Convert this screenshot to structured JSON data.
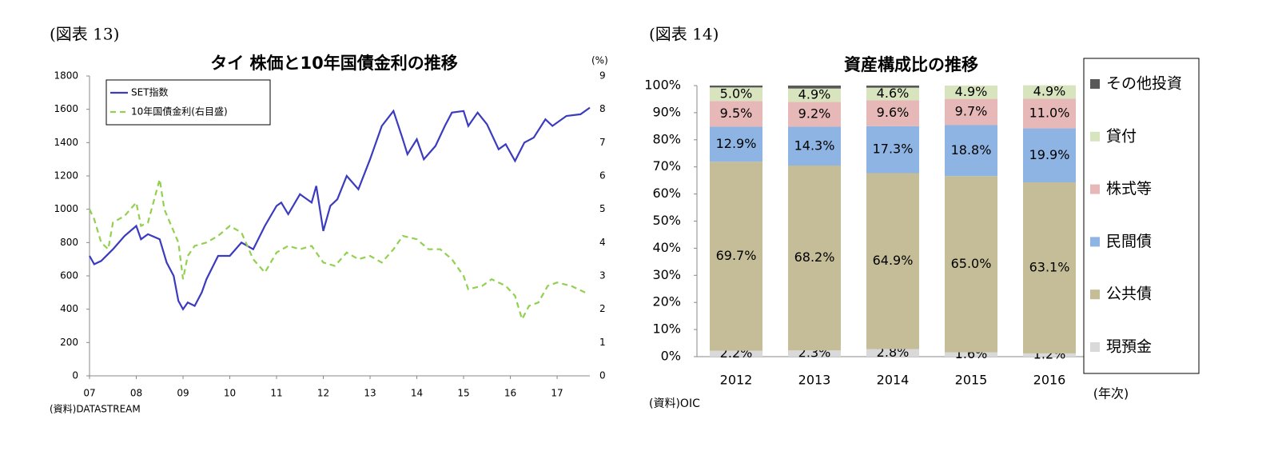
{
  "chart_data": [
    {
      "type": "line",
      "figure_label": "(図表 13)",
      "title": "タイ 株価と10年国債金利の推移",
      "y2_label": "(%)",
      "source": "(資料)DATASTREAM",
      "legend": "upper left",
      "xlim": [
        7,
        17.7
      ],
      "ylim": [
        0,
        1800
      ],
      "y2lim": [
        0,
        9
      ],
      "xticks": [
        {
          "value": 7,
          "label": "07"
        },
        {
          "value": 8,
          "label": "08"
        },
        {
          "value": 9,
          "label": "09"
        },
        10,
        11,
        12,
        13,
        14,
        15,
        16,
        17
      ],
      "yticks": [
        0,
        200,
        400,
        600,
        800,
        1000,
        1200,
        1400,
        1600,
        1800
      ],
      "y2ticks": [
        0,
        1,
        2,
        3,
        4,
        5,
        6,
        7,
        8,
        9
      ],
      "series": [
        {
          "name": "SET指数",
          "color": "#3b3bbf",
          "dash": false,
          "x": [
            7.0,
            7.1,
            7.25,
            7.5,
            7.75,
            8.0,
            8.1,
            8.25,
            8.5,
            8.65,
            8.8,
            8.9,
            9.0,
            9.1,
            9.25,
            9.4,
            9.5,
            9.75,
            10.0,
            10.25,
            10.5,
            10.75,
            11.0,
            11.1,
            11.25,
            11.5,
            11.75,
            11.85,
            12.0,
            12.15,
            12.3,
            12.5,
            12.75,
            13.0,
            13.25,
            13.5,
            13.7,
            13.8,
            14.0,
            14.15,
            14.4,
            14.6,
            14.75,
            15.0,
            15.1,
            15.3,
            15.5,
            15.75,
            15.9,
            16.1,
            16.3,
            16.5,
            16.75,
            16.9,
            17.2,
            17.5,
            17.7
          ],
          "values": [
            720,
            670,
            690,
            760,
            840,
            900,
            820,
            850,
            820,
            680,
            600,
            450,
            400,
            440,
            420,
            500,
            580,
            720,
            720,
            800,
            760,
            900,
            1020,
            1040,
            970,
            1090,
            1040,
            1140,
            870,
            1020,
            1060,
            1200,
            1120,
            1300,
            1500,
            1590,
            1420,
            1330,
            1420,
            1300,
            1380,
            1500,
            1580,
            1590,
            1500,
            1580,
            1510,
            1360,
            1390,
            1290,
            1400,
            1430,
            1540,
            1500,
            1560,
            1570,
            1610
          ]
        },
        {
          "name": "10年国債金利(右目盛)",
          "color": "#92d050",
          "dash": true,
          "axis": "y2",
          "x": [
            7.0,
            7.1,
            7.25,
            7.4,
            7.5,
            7.75,
            8.0,
            8.1,
            8.25,
            8.5,
            8.6,
            8.9,
            9.0,
            9.1,
            9.25,
            9.5,
            9.75,
            10.0,
            10.25,
            10.5,
            10.75,
            11.0,
            11.25,
            11.5,
            11.75,
            12.0,
            12.25,
            12.5,
            12.75,
            13.0,
            13.25,
            13.5,
            13.7,
            14.0,
            14.25,
            14.5,
            14.75,
            15.0,
            15.1,
            15.4,
            15.6,
            15.9,
            16.1,
            16.25,
            16.4,
            16.6,
            16.8,
            17.0,
            17.3,
            17.6
          ],
          "values": [
            5.0,
            4.7,
            4.0,
            3.8,
            4.6,
            4.8,
            5.2,
            4.5,
            4.6,
            5.9,
            5.0,
            4.0,
            2.9,
            3.6,
            3.9,
            4.0,
            4.2,
            4.5,
            4.3,
            3.5,
            3.1,
            3.7,
            3.9,
            3.8,
            3.9,
            3.4,
            3.3,
            3.7,
            3.5,
            3.6,
            3.4,
            3.8,
            4.2,
            4.1,
            3.8,
            3.8,
            3.5,
            3.0,
            2.6,
            2.7,
            2.9,
            2.7,
            2.4,
            1.7,
            2.1,
            2.2,
            2.7,
            2.8,
            2.7,
            2.5
          ]
        }
      ]
    },
    {
      "type": "bar",
      "stacked": true,
      "figure_label": "(図表 14)",
      "title": "資産構成比の推移",
      "x_label": "(年次)",
      "source": "(資料)OIC",
      "legend": "right",
      "categories": [
        "2012",
        "2013",
        "2014",
        "2015",
        "2016"
      ],
      "ylim": [
        0,
        100
      ],
      "yticks": [
        {
          "value": 0,
          "label": "0%"
        },
        {
          "value": 10,
          "label": "10%"
        },
        {
          "value": 20,
          "label": "20%"
        },
        {
          "value": 30,
          "label": "30%"
        },
        {
          "value": 40,
          "label": "40%"
        },
        {
          "value": 50,
          "label": "50%"
        },
        {
          "value": 60,
          "label": "60%"
        },
        {
          "value": 70,
          "label": "70%"
        },
        {
          "value": 80,
          "label": "80%"
        },
        {
          "value": 90,
          "label": "90%"
        },
        {
          "value": 100,
          "label": "100%"
        }
      ],
      "series": [
        {
          "name": "現預金",
          "color": "#d9d9d9",
          "values": [
            2.2,
            2.3,
            2.8,
            1.6,
            1.2
          ],
          "value_labels": [
            "2.2%",
            "2.3%",
            "2.8%",
            "1.6%",
            "1.2%"
          ]
        },
        {
          "name": "公共債",
          "color": "#c4bd97",
          "values": [
            69.7,
            68.2,
            64.9,
            65.0,
            63.1
          ],
          "value_labels": [
            "69.7%",
            "68.2%",
            "64.9%",
            "65.0%",
            "63.1%"
          ]
        },
        {
          "name": "民間債",
          "color": "#8eb4e3",
          "values": [
            12.9,
            14.3,
            17.3,
            18.8,
            19.9
          ],
          "value_labels": [
            "12.9%",
            "14.3%",
            "17.3%",
            "18.8%",
            "19.9%"
          ]
        },
        {
          "name": "株式等",
          "color": "#e6b9b8",
          "values": [
            9.5,
            9.2,
            9.6,
            9.7,
            11.0
          ],
          "value_labels": [
            "9.5%",
            "9.2%",
            "9.6%",
            "9.7%",
            "11.0%"
          ]
        },
        {
          "name": "貸付",
          "color": "#d7e4bd",
          "values": [
            5.0,
            4.9,
            4.6,
            4.9,
            4.9
          ],
          "value_labels": [
            "5.0%",
            "4.9%",
            "4.6%",
            "4.9%",
            "4.9%"
          ]
        },
        {
          "name": "その他投資",
          "color": "#595959",
          "values": [
            0.7,
            1.1,
            0.8,
            0.0,
            0.0
          ]
        }
      ]
    }
  ]
}
